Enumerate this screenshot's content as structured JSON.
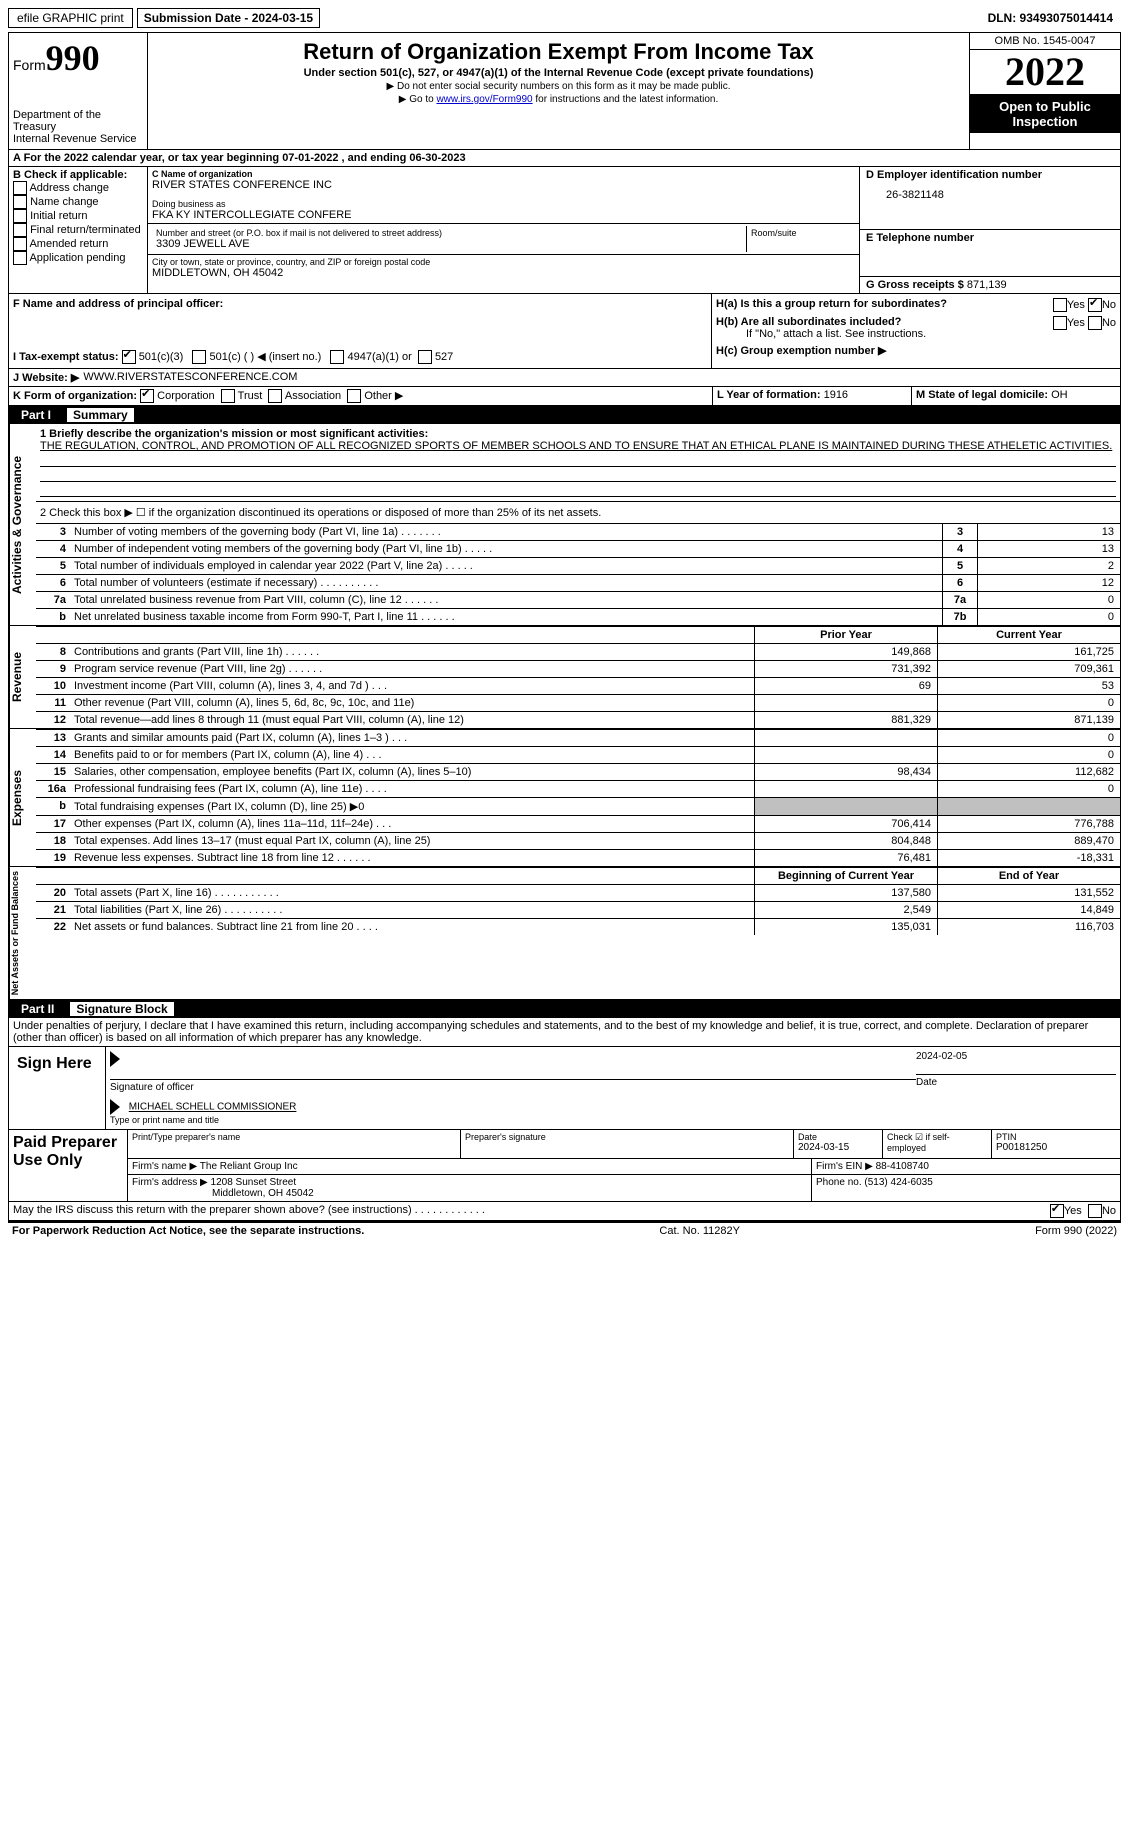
{
  "top": {
    "efile": "efile GRAPHIC print",
    "submission_label": "Submission Date - 2024-03-15",
    "dln": "DLN: 93493075014414"
  },
  "header": {
    "form_prefix": "Form",
    "form_number": "990",
    "dept": "Department of the Treasury",
    "irs": "Internal Revenue Service",
    "title": "Return of Organization Exempt From Income Tax",
    "subtitle": "Under section 501(c), 527, or 4947(a)(1) of the Internal Revenue Code (except private foundations)",
    "note1": "▶ Do not enter social security numbers on this form as it may be made public.",
    "note2_pre": "▶ Go to ",
    "note2_link": "www.irs.gov/Form990",
    "note2_post": " for instructions and the latest information.",
    "omb": "OMB No. 1545-0047",
    "year": "2022",
    "open": "Open to Public Inspection"
  },
  "rowA": {
    "text": "A For the 2022 calendar year, or tax year beginning 07-01-2022     , and ending 06-30-2023"
  },
  "blockB": {
    "label": "B Check if applicable:",
    "opts": [
      "Address change",
      "Name change",
      "Initial return",
      "Final return/terminated",
      "Amended return",
      "Application pending"
    ]
  },
  "blockC": {
    "name_label": "C Name of organization",
    "name": "RIVER STATES CONFERENCE INC",
    "dba_label": "Doing business as",
    "dba": "FKA KY INTERCOLLEGIATE CONFERE",
    "street_label": "Number and street (or P.O. box if mail is not delivered to street address)",
    "street": "3309 JEWELL AVE",
    "room_label": "Room/suite",
    "city_label": "City or town, state or province, country, and ZIP or foreign postal code",
    "city": "MIDDLETOWN, OH  45042"
  },
  "blockD": {
    "ein_label": "D Employer identification number",
    "ein": "26-3821148",
    "phone_label": "E Telephone number",
    "gross_label": "G Gross receipts $",
    "gross": "871,139"
  },
  "rowF": {
    "label": "F  Name and address of principal officer:"
  },
  "rowH": {
    "ha": "H(a)  Is this a group return for subordinates?",
    "hb": "H(b)  Are all subordinates included?",
    "hb_note": "If \"No,\" attach a list. See instructions.",
    "hc": "H(c)  Group exemption number ▶",
    "yes": "Yes",
    "no": "No"
  },
  "rowI": {
    "label": "I    Tax-exempt status:",
    "o1": "501(c)(3)",
    "o2": "501(c) (  ) ◀ (insert no.)",
    "o3": "4947(a)(1) or",
    "o4": "527"
  },
  "rowJ": {
    "label": "J   Website: ▶",
    "val": "WWW.RIVERSTATESCONFERENCE.COM"
  },
  "rowK": {
    "label": "K Form of organization:",
    "o1": "Corporation",
    "o2": "Trust",
    "o3": "Association",
    "o4": "Other ▶"
  },
  "rowL": {
    "label": "L Year of formation:",
    "val": "1916"
  },
  "rowM": {
    "label": "M State of legal domicile:",
    "val": "OH"
  },
  "part1": {
    "label": "Part I",
    "title": "Summary"
  },
  "summary": {
    "side1": "Activities & Governance",
    "q1_label": "1   Briefly describe the organization's mission or most significant activities:",
    "q1_text": "THE REGULATION, CONTROL, AND PROMOTION OF ALL RECOGNIZED SPORTS OF MEMBER SCHOOLS AND TO ENSURE THAT AN ETHICAL PLANE IS MAINTAINED DURING THESE ATHELETIC ACTIVITIES.",
    "q2": "2    Check this box ▶ ☐  if the organization discontinued its operations or disposed of more than 25% of its net assets.",
    "rows_gov": [
      {
        "n": "3",
        "t": "Number of voting members of the governing body (Part VI, line 1a)   .   .   .   .   .   .   .",
        "box": "3",
        "v": "13"
      },
      {
        "n": "4",
        "t": "Number of independent voting members of the governing body (Part VI, line 1b)  .   .   .   .   .",
        "box": "4",
        "v": "13"
      },
      {
        "n": "5",
        "t": "Total number of individuals employed in calendar year 2022 (Part V, line 2a)  .   .   .   .   .",
        "box": "5",
        "v": "2"
      },
      {
        "n": "6",
        "t": "Total number of volunteers (estimate if necessary)    .   .   .   .   .   .   .   .   .   .",
        "box": "6",
        "v": "12"
      },
      {
        "n": "7a",
        "t": "Total unrelated business revenue from Part VIII, column (C), line 12   .   .   .   .   .   .",
        "box": "7a",
        "v": "0"
      },
      {
        "n": "b",
        "t": "Net unrelated business taxable income from Form 990-T, Part I, line 11  .   .   .   .   .   .",
        "box": "7b",
        "v": "0"
      }
    ],
    "prior_label": "Prior Year",
    "current_label": "Current Year",
    "side2": "Revenue",
    "rows_rev": [
      {
        "n": "8",
        "t": "Contributions and grants (Part VIII, line 1h)   .   .   .   .   .   .",
        "p": "149,868",
        "c": "161,725"
      },
      {
        "n": "9",
        "t": "Program service revenue (Part VIII, line 2g)   .   .   .   .   .   .",
        "p": "731,392",
        "c": "709,361"
      },
      {
        "n": "10",
        "t": "Investment income (Part VIII, column (A), lines 3, 4, and 7d )   .   .   .",
        "p": "69",
        "c": "53"
      },
      {
        "n": "11",
        "t": "Other revenue (Part VIII, column (A), lines 5, 6d, 8c, 9c, 10c, and 11e)",
        "p": "",
        "c": "0"
      },
      {
        "n": "12",
        "t": "Total revenue—add lines 8 through 11 (must equal Part VIII, column (A), line 12)",
        "p": "881,329",
        "c": "871,139"
      }
    ],
    "side3": "Expenses",
    "rows_exp": [
      {
        "n": "13",
        "t": "Grants and similar amounts paid (Part IX, column (A), lines 1–3 )  .   .   .",
        "p": "",
        "c": "0"
      },
      {
        "n": "14",
        "t": "Benefits paid to or for members (Part IX, column (A), line 4)  .   .   .",
        "p": "",
        "c": "0"
      },
      {
        "n": "15",
        "t": "Salaries, other compensation, employee benefits (Part IX, column (A), lines 5–10)",
        "p": "98,434",
        "c": "112,682"
      },
      {
        "n": "16a",
        "t": "Professional fundraising fees (Part IX, column (A), line 11e)  .   .   .   .",
        "p": "",
        "c": "0"
      },
      {
        "n": "b",
        "t": "Total fundraising expenses (Part IX, column (D), line 25) ▶0",
        "p": "SHADE",
        "c": "SHADE"
      },
      {
        "n": "17",
        "t": "Other expenses (Part IX, column (A), lines 11a–11d, 11f–24e)   .   .   .",
        "p": "706,414",
        "c": "776,788"
      },
      {
        "n": "18",
        "t": "Total expenses. Add lines 13–17 (must equal Part IX, column (A), line 25)",
        "p": "804,848",
        "c": "889,470"
      },
      {
        "n": "19",
        "t": "Revenue less expenses. Subtract line 18 from line 12  .   .   .   .   .   .",
        "p": "76,481",
        "c": "-18,331"
      }
    ],
    "side4": "Net Assets or Fund Balances",
    "begin_label": "Beginning of Current Year",
    "end_label": "End of Year",
    "rows_net": [
      {
        "n": "20",
        "t": "Total assets (Part X, line 16)  .   .   .   .   .   .   .   .   .   .   .",
        "p": "137,580",
        "c": "131,552"
      },
      {
        "n": "21",
        "t": "Total liabilities (Part X, line 26)  .   .   .   .   .   .   .   .   .   .",
        "p": "2,549",
        "c": "14,849"
      },
      {
        "n": "22",
        "t": "Net assets or fund balances. Subtract line 21 from line 20   .   .   .   .",
        "p": "135,031",
        "c": "116,703"
      }
    ]
  },
  "part2": {
    "label": "Part II",
    "title": "Signature Block",
    "declaration": "Under penalties of perjury, I declare that I have examined this return, including accompanying schedules and statements, and to the best of my knowledge and belief, it is true, correct, and complete. Declaration of preparer (other than officer) is based on all information of which preparer has any knowledge."
  },
  "sign": {
    "label": "Sign Here",
    "sig_label": "Signature of officer",
    "date_label": "Date",
    "date": "2024-02-05",
    "name": "MICHAEL SCHELL  COMMISSIONER",
    "name_label": "Type or print name and title"
  },
  "preparer": {
    "label": "Paid Preparer Use Only",
    "r1": {
      "c1_label": "Print/Type preparer's name",
      "c2_label": "Preparer's signature",
      "c3_label": "Date",
      "c3": "2024-03-15",
      "c4_label": "Check ☑ if self-employed",
      "c5_label": "PTIN",
      "c5": "P00181250"
    },
    "r2": {
      "firm_label": "Firm's name    ▶",
      "firm": "The Reliant Group Inc",
      "ein_label": "Firm's EIN ▶",
      "ein": "88-4108740"
    },
    "r3": {
      "addr_label": "Firm's address ▶",
      "addr1": "1208 Sunset Street",
      "addr2": "Middletown, OH  45042",
      "phone_label": "Phone no.",
      "phone": "(513) 424-6035"
    }
  },
  "bottom": {
    "q": "May the IRS discuss this return with the preparer shown above? (see instructions)   .   .   .   .   .   .   .   .   .   .   .   .",
    "yes": "Yes",
    "no": "No",
    "paperwork": "For Paperwork Reduction Act Notice, see the separate instructions.",
    "cat": "Cat. No. 11282Y",
    "form": "Form 990 (2022)"
  }
}
